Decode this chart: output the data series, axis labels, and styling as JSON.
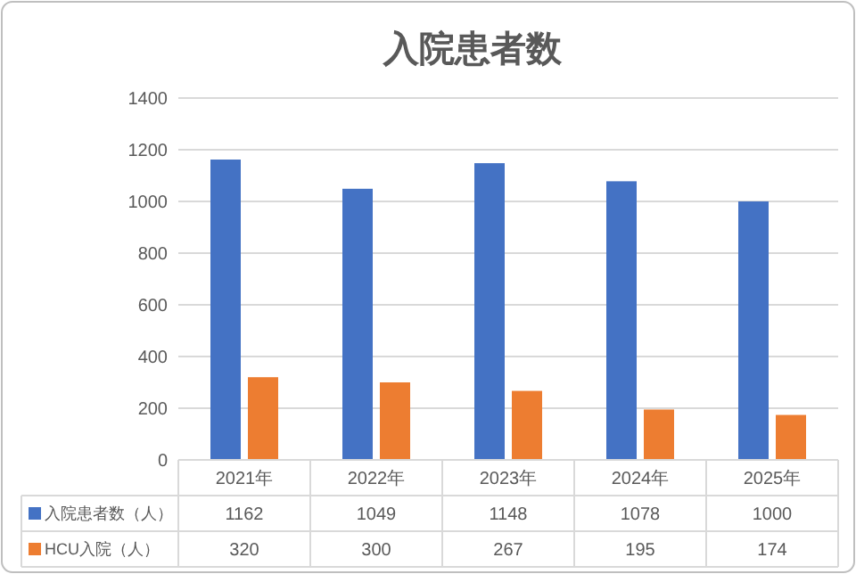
{
  "chart_data": {
    "type": "bar",
    "title": "入院患者数",
    "categories": [
      "2021年",
      "2022年",
      "2023年",
      "2024年",
      "2025年"
    ],
    "series": [
      {
        "name": "入院患者数（人）",
        "color": "#4472c4",
        "values": [
          1162,
          1049,
          1148,
          1078,
          1000
        ]
      },
      {
        "name": "HCU入院（人）",
        "color": "#ed7d31",
        "values": [
          320,
          300,
          267,
          195,
          174
        ]
      }
    ],
    "ylim": [
      0,
      1400
    ],
    "yticks": [
      0,
      200,
      400,
      600,
      800,
      1000,
      1200,
      1400
    ],
    "grid": "y",
    "legend": "bottom",
    "data_labels": true
  }
}
